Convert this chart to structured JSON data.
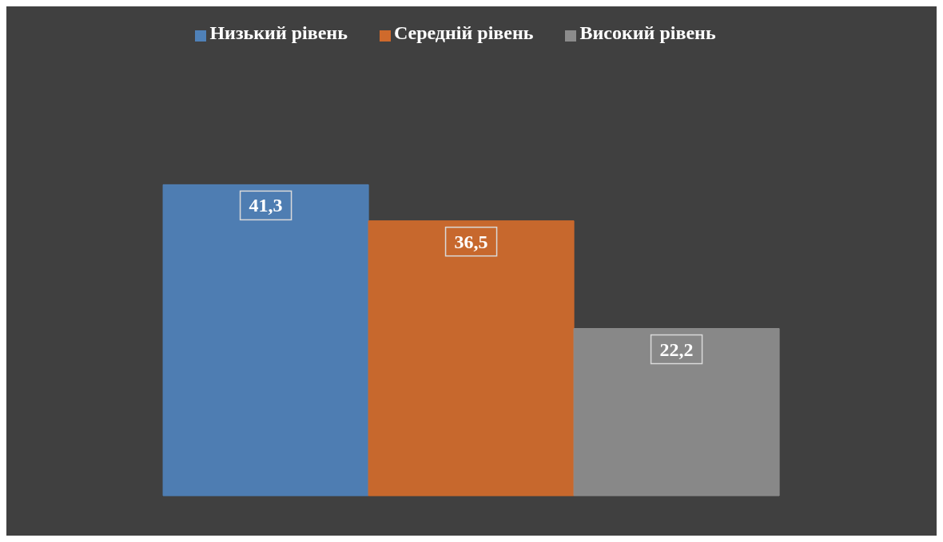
{
  "chart_data": {
    "type": "bar",
    "categories": [
      null
    ],
    "series": [
      {
        "name": "Низький рівень",
        "color": "#4f81b8",
        "values": [
          41.3
        ],
        "value_labels": [
          "41,3"
        ]
      },
      {
        "name": "Середній рівень",
        "color": "#cf6a2c",
        "values": [
          36.5
        ],
        "value_labels": [
          "36,5"
        ]
      },
      {
        "name": "Високий рівень",
        "color": "#8c8c8c",
        "values": [
          22.2
        ],
        "value_labels": [
          "22,2"
        ]
      }
    ],
    "legend": "top",
    "grid": false
  }
}
